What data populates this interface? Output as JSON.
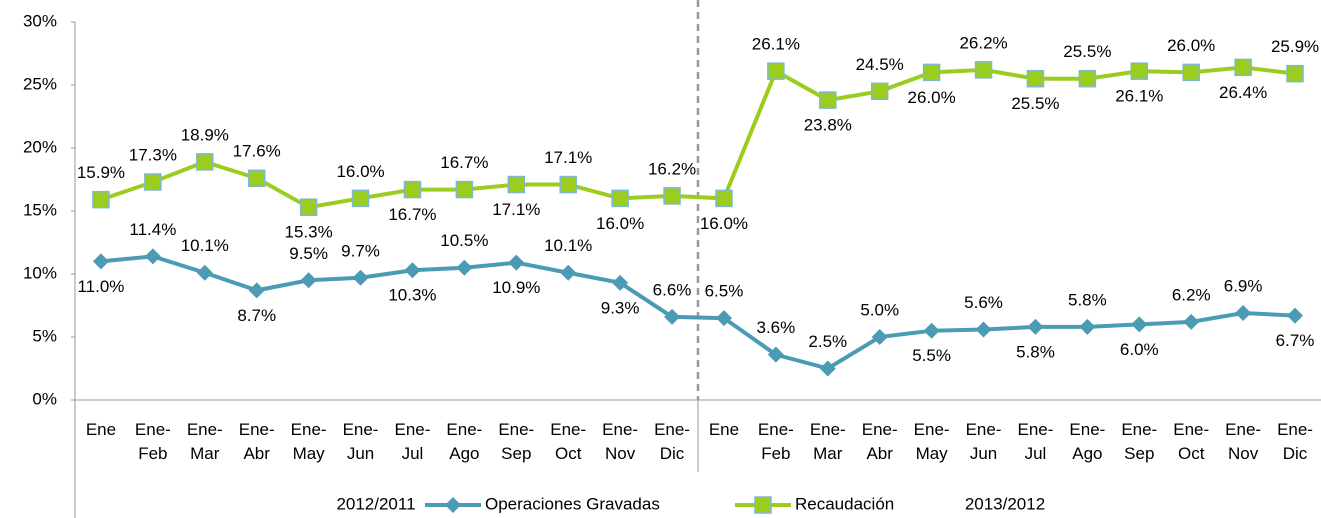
{
  "chart_data": {
    "type": "line",
    "categories": [
      "Ene",
      "Ene-Feb",
      "Ene-Mar",
      "Ene-Abr",
      "Ene-May",
      "Ene-Jun",
      "Ene-Jul",
      "Ene-Ago",
      "Ene-Sep",
      "Ene-Oct",
      "Ene-Nov",
      "Ene-Dic",
      "Ene",
      "Ene-Feb",
      "Ene-Mar",
      "Ene-Abr",
      "Ene-May",
      "Ene-Jun",
      "Ene-Jul",
      "Ene-Ago",
      "Ene-Sep",
      "Ene-Oct",
      "Ene-Nov",
      "Ene-Dic"
    ],
    "groups": [
      "2012/2011",
      "2013/2012"
    ],
    "series": [
      {
        "name": "Operaciones Gravadas",
        "color": "#4a9bb3",
        "marker": "diamond",
        "values": [
          11.0,
          11.4,
          10.1,
          8.7,
          9.5,
          9.7,
          10.3,
          10.5,
          10.9,
          10.1,
          9.3,
          6.6,
          6.5,
          3.6,
          2.5,
          5.0,
          5.5,
          5.6,
          5.8,
          5.8,
          6.0,
          6.2,
          6.9,
          6.7
        ],
        "value_labels": [
          "11.0%",
          "11.4%",
          "10.1%",
          "8.7%",
          "9.5%",
          "9.7%",
          "10.3%",
          "10.5%",
          "10.9%",
          "10.1%",
          "9.3%",
          "6.6%",
          "6.5%",
          "3.6%",
          "2.5%",
          "5.0%",
          "5.5%",
          "5.6%",
          "5.8%",
          "5.8%",
          "6.0%",
          "6.2%",
          "6.9%",
          "6.7%"
        ]
      },
      {
        "name": "Recaudación",
        "color": "#9acd1e",
        "marker": "square",
        "values": [
          15.9,
          17.3,
          18.9,
          17.6,
          15.3,
          16.0,
          16.7,
          16.7,
          17.1,
          17.1,
          16.0,
          16.2,
          16.0,
          26.1,
          23.8,
          24.5,
          26.0,
          26.2,
          25.5,
          25.5,
          26.1,
          26.0,
          26.4,
          25.9
        ],
        "value_labels": [
          "15.9%",
          "17.3%",
          "18.9%",
          "17.6%",
          "15.3%",
          "16.0%",
          "16.7%",
          "16.7%",
          "17.1%",
          "17.1%",
          "16.0%",
          "16.2%",
          "16.0%",
          "26.1%",
          "23.8%",
          "24.5%",
          "26.0%",
          "26.2%",
          "25.5%",
          "25.5%",
          "26.1%",
          "26.0%",
          "26.4%",
          "25.9%"
        ]
      }
    ],
    "ylim": [
      0,
      30
    ],
    "yticks": [
      {
        "value": 0,
        "label": "0%"
      },
      {
        "value": 5,
        "label": "5%"
      },
      {
        "value": 10,
        "label": "10%"
      },
      {
        "value": 15,
        "label": "15%"
      },
      {
        "value": 20,
        "label": "20%"
      },
      {
        "value": 25,
        "label": "25%"
      },
      {
        "value": 30,
        "label": "30%"
      }
    ],
    "grid": false,
    "legend": "bottom"
  }
}
